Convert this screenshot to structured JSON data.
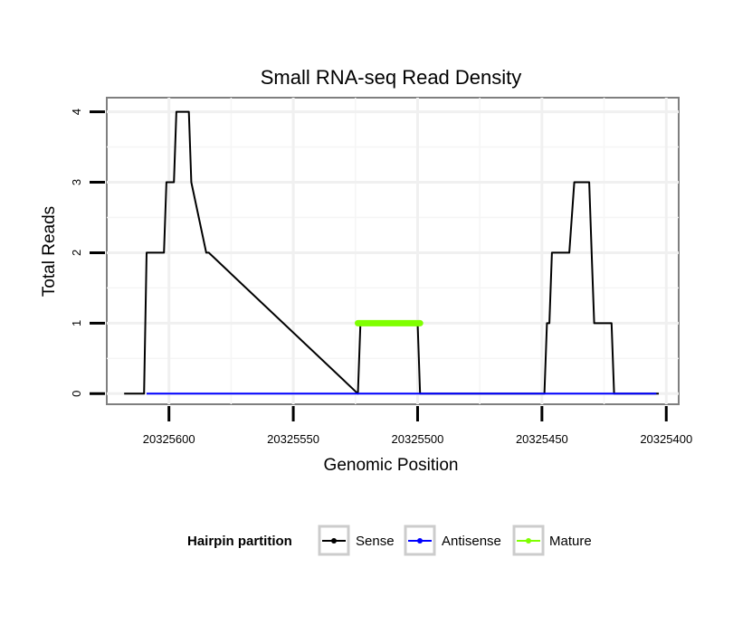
{
  "chart_data": {
    "type": "line",
    "title": "Small RNA-seq Read Density",
    "xlabel": "Genomic Position",
    "ylabel": "Total Reads",
    "x_reversed": true,
    "xlim": [
      20325625,
      20325395
    ],
    "ylim": [
      -0.15,
      4.2
    ],
    "x_ticks": [
      20325600,
      20325550,
      20325500,
      20325450,
      20325400
    ],
    "x_tick_labels": [
      "20325600",
      "20325550",
      "20325500",
      "20325450",
      "20325400"
    ],
    "y_ticks": [
      0,
      1,
      2,
      3,
      4
    ],
    "y_tick_labels": [
      "0",
      "1",
      "2",
      "3",
      "4"
    ],
    "grid": true,
    "legend_position": "bottom",
    "legend": {
      "title": "Hairpin partition",
      "entries": [
        {
          "label": "Sense",
          "color": "#000000"
        },
        {
          "label": "Antisense",
          "color": "#0000ff"
        },
        {
          "label": "Mature",
          "color": "#7fff00"
        }
      ]
    },
    "series": [
      {
        "name": "Sense",
        "color": "#000000",
        "x": [
          20325618,
          20325610,
          20325609,
          20325602,
          20325601,
          20325598,
          20325597,
          20325595,
          20325594,
          20325592,
          20325591,
          20325585,
          20325584,
          20325524,
          20325523,
          20325500,
          20325499,
          20325449,
          20325448,
          20325447,
          20325446,
          20325440,
          20325439,
          20325437,
          20325436,
          20325431,
          20325430,
          20325429,
          20325428,
          20325422,
          20325421,
          20325404,
          20325403
        ],
        "values": [
          0,
          0,
          2,
          2,
          3,
          3,
          4,
          4,
          4,
          4,
          3,
          2,
          2,
          0,
          1,
          1,
          0,
          0,
          1,
          1,
          2,
          2,
          2,
          3,
          3,
          3,
          2,
          1,
          1,
          1,
          0,
          0,
          0
        ]
      },
      {
        "name": "Antisense",
        "color": "#0000ff",
        "x": [
          20325609,
          20325584,
          20325524,
          20325499,
          20325449,
          20325404
        ],
        "values": [
          0,
          0,
          0,
          0,
          0,
          0
        ]
      },
      {
        "name": "Mature",
        "color": "#7fff00",
        "x": [
          20325524,
          20325499
        ],
        "values": [
          1,
          1
        ]
      }
    ]
  }
}
